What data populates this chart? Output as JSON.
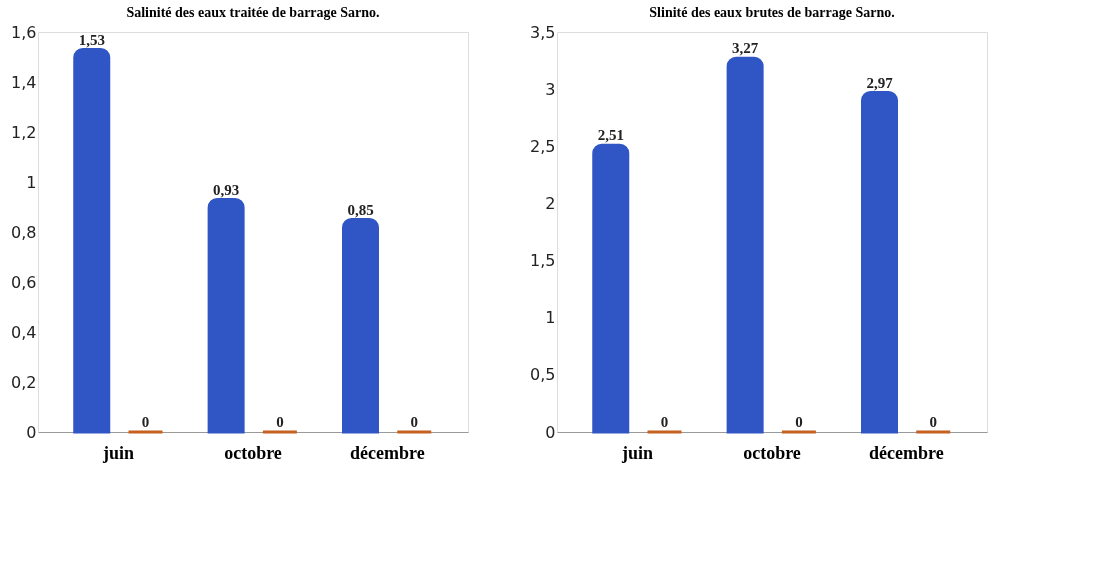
{
  "chart_data": [
    {
      "type": "bar",
      "title": "Salinité des eaux traitée de barrage Sarno.",
      "categories": [
        "juin",
        "octobre",
        "décembre"
      ],
      "legend": false,
      "grid": false,
      "ylim": [
        0,
        1.6
      ],
      "yticks": [
        0,
        {
          "value": 0.2,
          "label": "0,2"
        },
        {
          "value": 0.4,
          "label": "0,4"
        },
        {
          "value": 0.6,
          "label": "0,6"
        },
        {
          "value": 0.8,
          "label": "0,8"
        },
        1,
        {
          "value": 1.2,
          "label": "1,2"
        },
        {
          "value": 1.4,
          "label": "1,4"
        },
        {
          "value": 1.6,
          "label": "1,6"
        }
      ],
      "series": [
        {
          "color": "#2f56c4",
          "values": [
            1.53,
            0.93,
            0.85
          ],
          "value_labels": [
            "1,53",
            "0,93",
            "0,85"
          ]
        },
        {
          "color": "#c5601e",
          "values": [
            0,
            0,
            0
          ],
          "value_labels": [
            "0",
            "0",
            "0"
          ]
        }
      ]
    },
    {
      "type": "bar",
      "title": "Slinité des eaux brutes de barrage Sarno.",
      "categories": [
        "juin",
        "octobre",
        "décembre"
      ],
      "legend": false,
      "grid": false,
      "ylim": [
        0,
        3.5
      ],
      "yticks": [
        0,
        {
          "value": 0.5,
          "label": "0,5"
        },
        1,
        {
          "value": 1.5,
          "label": "1,5"
        },
        2,
        {
          "value": 2.5,
          "label": "2,5"
        },
        3,
        {
          "value": 3.5,
          "label": "3,5"
        }
      ],
      "series": [
        {
          "color": "#2f56c4",
          "values": [
            2.51,
            3.27,
            2.97
          ],
          "value_labels": [
            "2,51",
            "3,27",
            "2,97"
          ]
        },
        {
          "color": "#c5601e",
          "values": [
            0,
            0,
            0
          ],
          "value_labels": [
            "0",
            "0",
            "0"
          ]
        }
      ]
    }
  ]
}
